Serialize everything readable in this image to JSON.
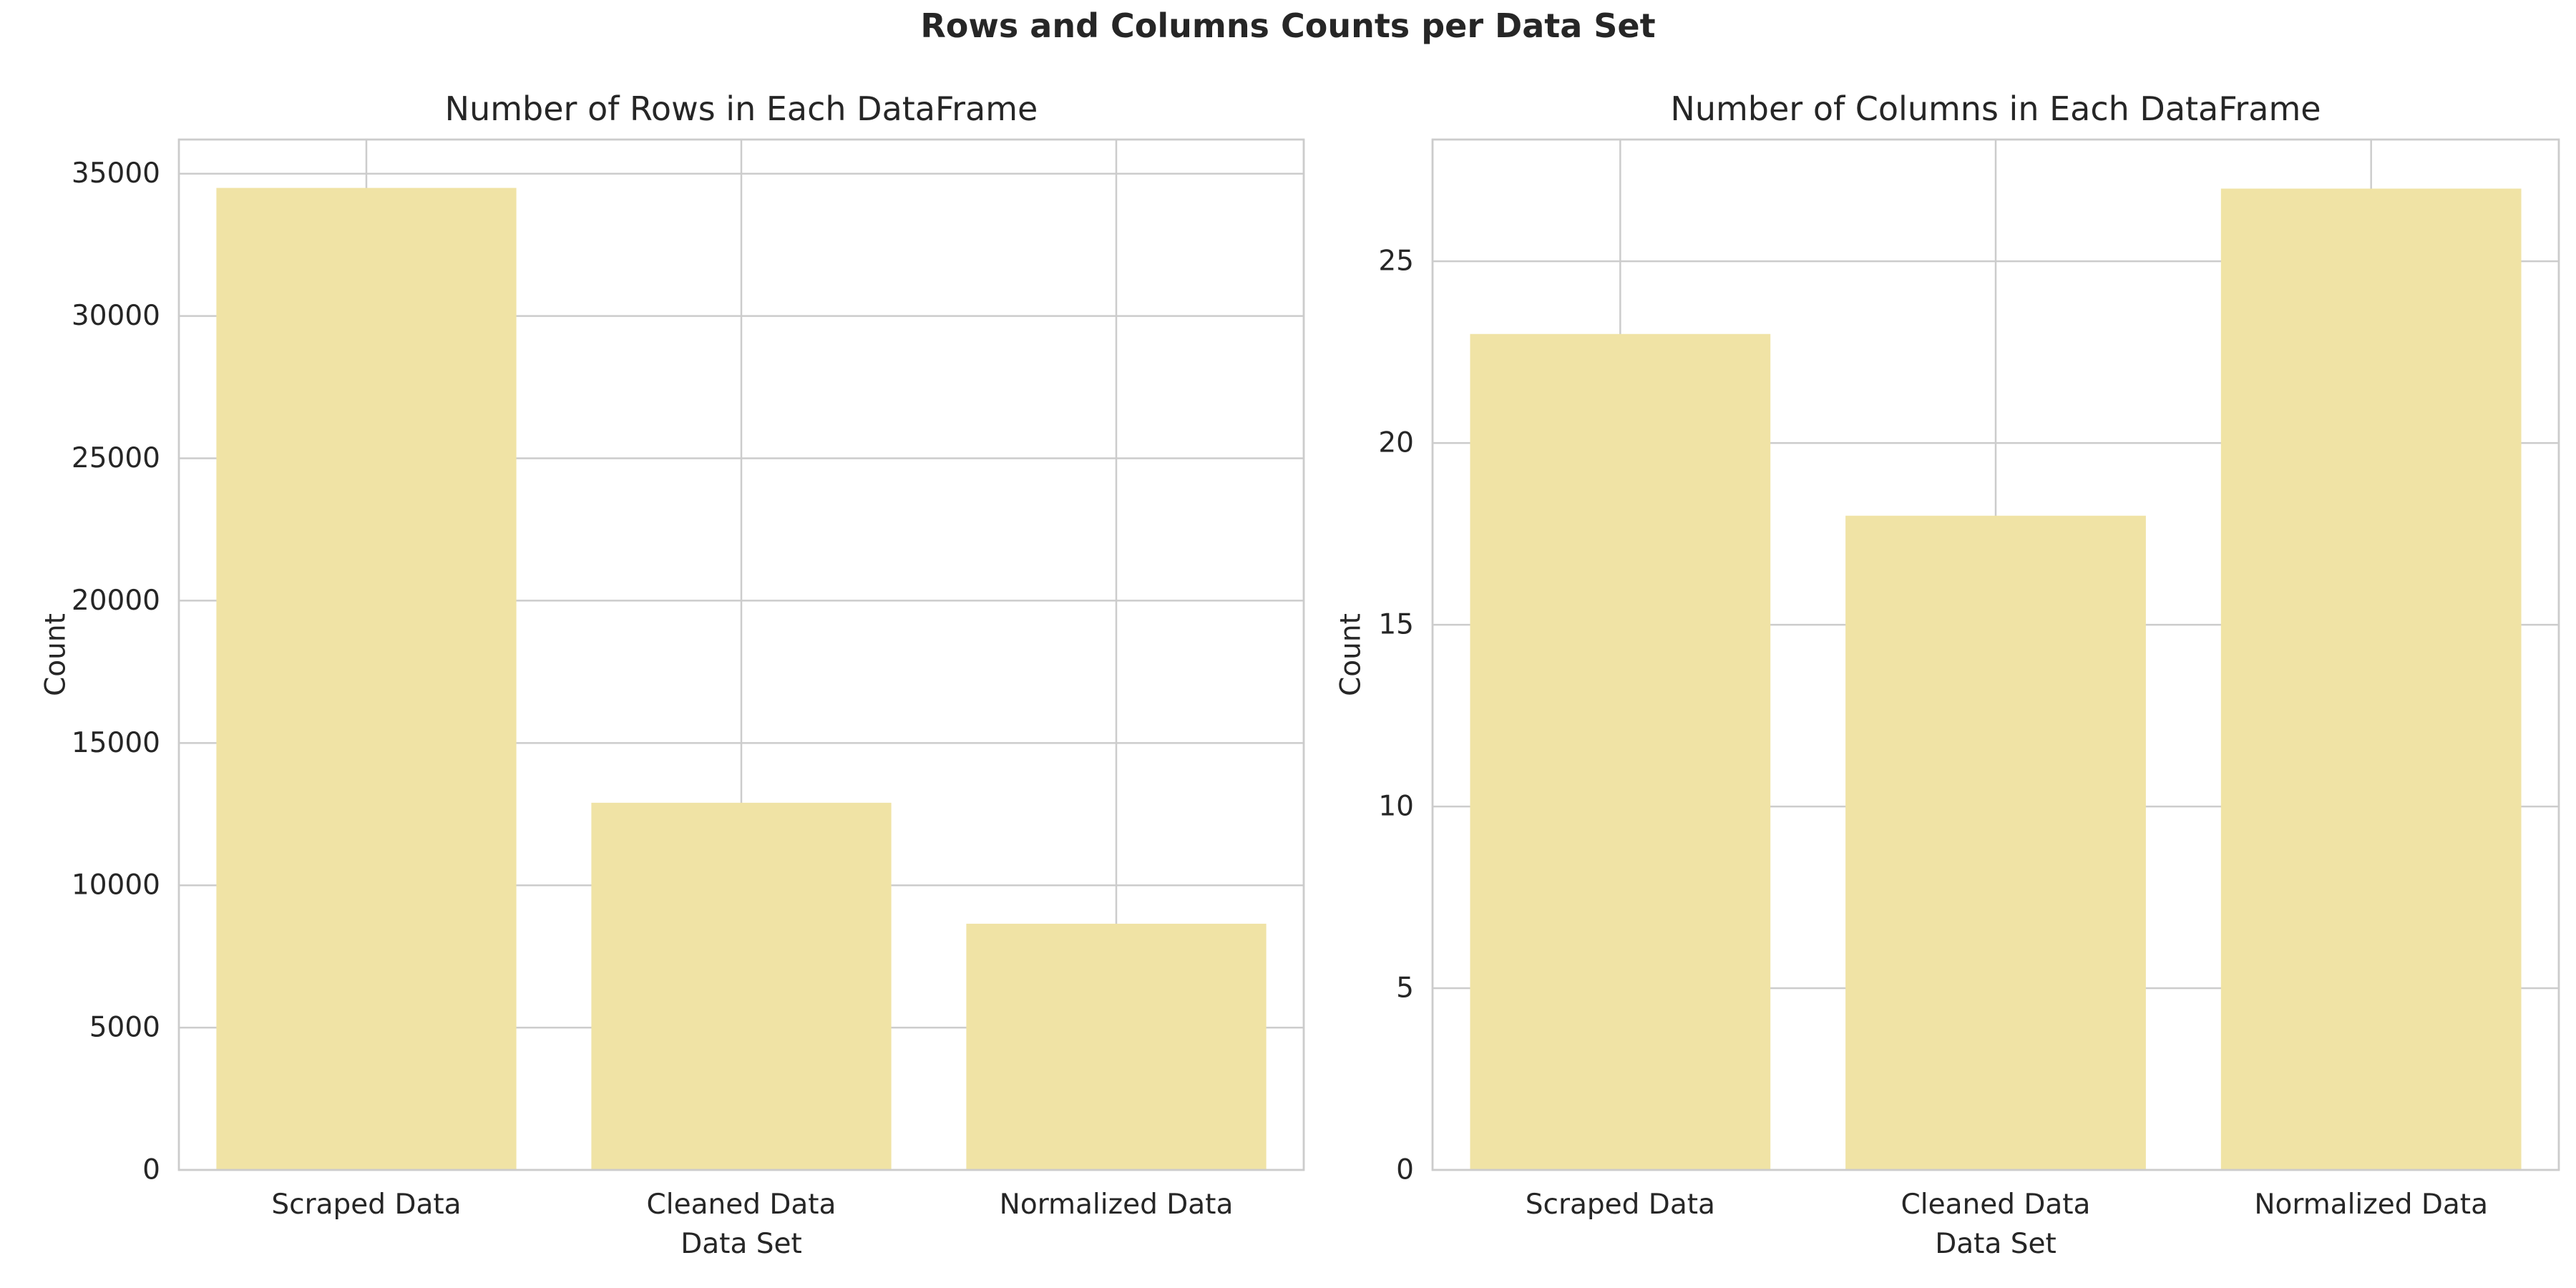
{
  "figure": {
    "suptitle": "Rows and Columns Counts per Data Set"
  },
  "colors": {
    "bar": "#f0e3a5",
    "grid": "#cccccc",
    "text": "#262626"
  },
  "chart_data": [
    {
      "type": "bar",
      "title": "Number of Rows in Each DataFrame",
      "xlabel": "Data Set",
      "ylabel": "Count",
      "categories": [
        "Scraped Data",
        "Cleaned Data",
        "Normalized Data"
      ],
      "values": [
        34500,
        12900,
        8650
      ],
      "ylim": [
        0,
        36200
      ],
      "yticks": [
        0,
        5000,
        10000,
        15000,
        20000,
        25000,
        30000,
        35000
      ],
      "grid": true
    },
    {
      "type": "bar",
      "title": "Number of Columns in Each DataFrame",
      "xlabel": "Data Set",
      "ylabel": "Count",
      "categories": [
        "Scraped Data",
        "Cleaned Data",
        "Normalized Data"
      ],
      "values": [
        23,
        18,
        27
      ],
      "ylim": [
        0,
        28.35
      ],
      "yticks": [
        0,
        5,
        10,
        15,
        20,
        25
      ],
      "grid": true
    }
  ]
}
